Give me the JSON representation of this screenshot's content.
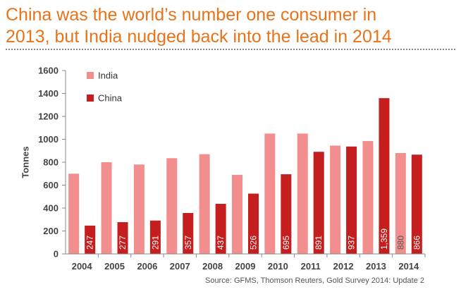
{
  "headline": {
    "line1": "China was the world’s number one consumer in",
    "line2": "2013, but India nudged back into the lead in 2014"
  },
  "chart_data": {
    "type": "bar",
    "categories": [
      "2004",
      "2005",
      "2006",
      "2007",
      "2008",
      "2009",
      "2010",
      "2011",
      "2012",
      "2013",
      "2014"
    ],
    "series": [
      {
        "name": "India",
        "color": "#f28e8e",
        "values": [
          700,
          800,
          780,
          835,
          870,
          690,
          1050,
          1050,
          945,
          985,
          880
        ],
        "data_labels": [
          "",
          "",
          "",
          "",
          "",
          "",
          "",
          "",
          "",
          "",
          "880"
        ]
      },
      {
        "name": "China",
        "color": "#c41e1e",
        "values": [
          247,
          277,
          291,
          357,
          437,
          526,
          695,
          891,
          937,
          1359,
          866
        ],
        "data_labels": [
          "247",
          "277",
          "291",
          "357",
          "437",
          "526",
          "695",
          "891",
          "937",
          "1,359",
          "866"
        ]
      }
    ],
    "ylabel": "Tonnes",
    "xlabel": "",
    "ylim": [
      0,
      1600
    ],
    "yticks": [
      "0",
      "200",
      "400",
      "600",
      "800",
      "1000",
      "1200",
      "1400",
      "1600"
    ],
    "grid": false,
    "legend": "top-left"
  },
  "source": "Source: GFMS, Thomson Reuters, Gold Survey 2014: Update 2"
}
